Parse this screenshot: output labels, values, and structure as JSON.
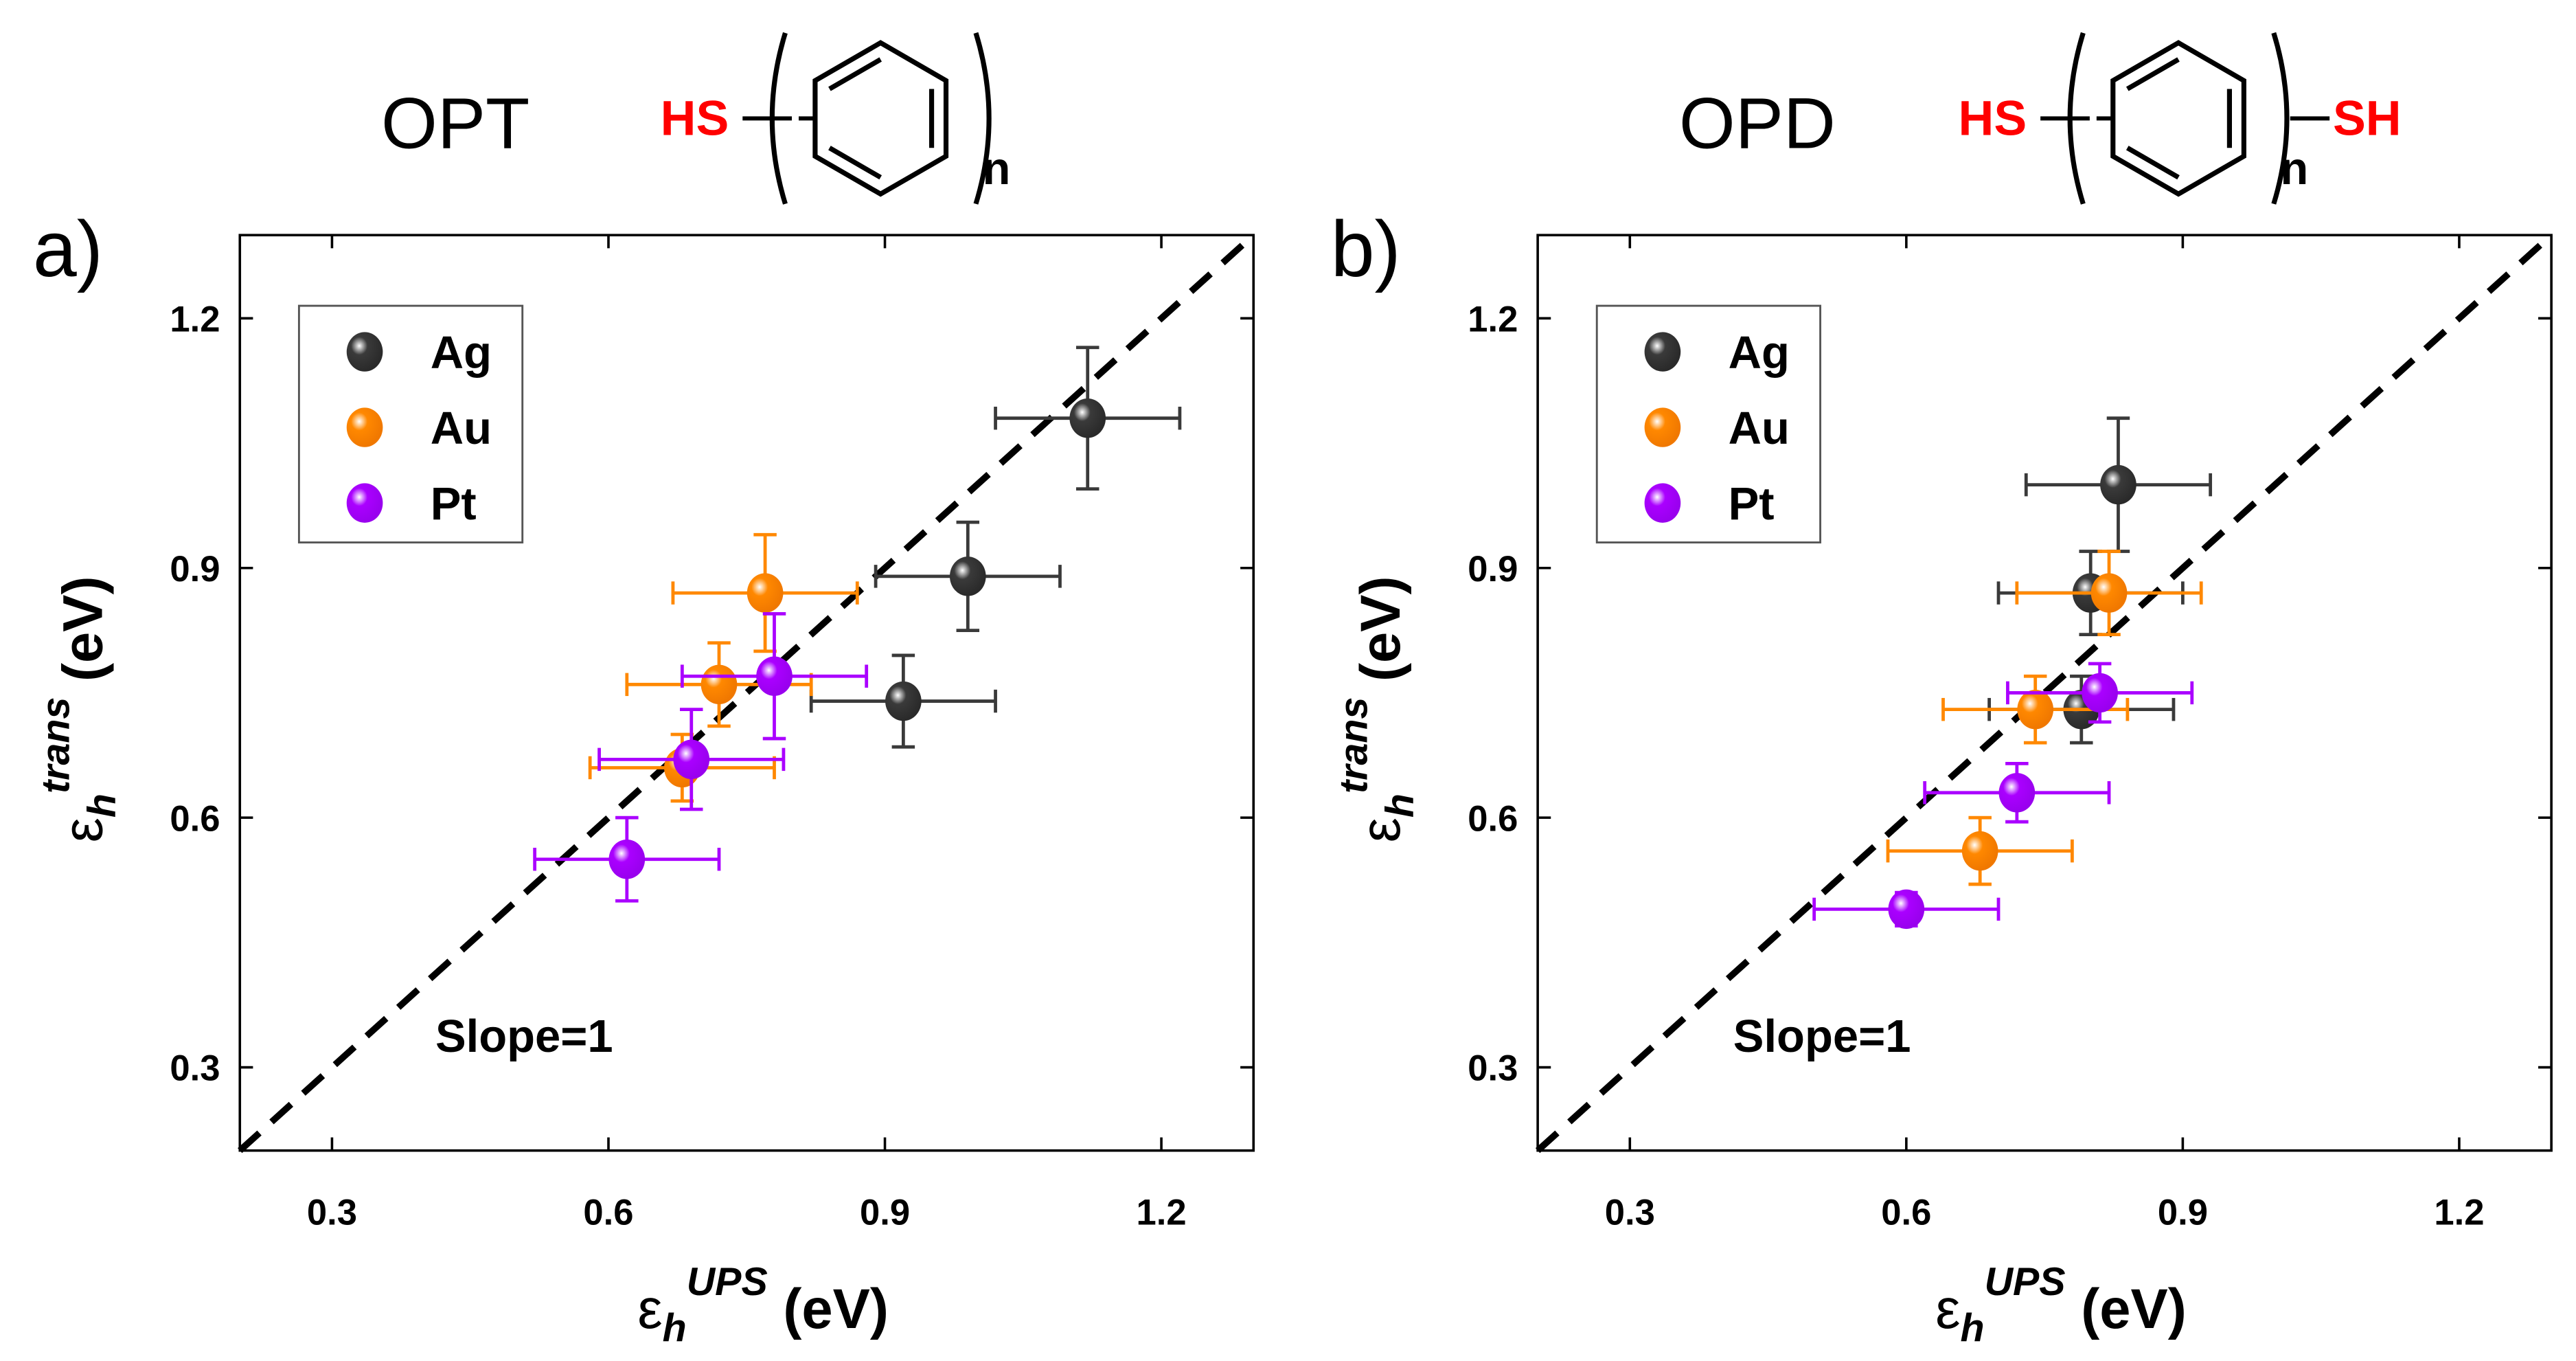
{
  "colors": {
    "Ag": "#3a3a3a",
    "Au": "#ff8800",
    "Pt": "#aa00ff",
    "thiol": "#ff0000",
    "diag": "#000000"
  },
  "chart_data": [
    {
      "type": "scatter",
      "panel_label": "a)",
      "title": "OPT",
      "structure": {
        "left_group": "HS",
        "subscript": "n",
        "right_group": ""
      },
      "xlabel": {
        "symbol": "ε",
        "sub": "h",
        "sup": "UPS",
        "unit": " (eV)"
      },
      "ylabel": {
        "symbol": "ε",
        "sub": "h",
        "sup": "trans",
        "unit": " (eV)"
      },
      "xlim": [
        0.2,
        1.3
      ],
      "ylim": [
        0.2,
        1.3
      ],
      "xticks": [
        "0.3",
        "0.6",
        "0.9",
        "1.2"
      ],
      "yticks": [
        "0.3",
        "0.6",
        "0.9",
        "1.2"
      ],
      "annotation": "Slope=1",
      "reference_line": {
        "slope": 1,
        "style": "dashed"
      },
      "legend": {
        "placement": "top-left",
        "entries": [
          "Ag",
          "Au",
          "Pt"
        ]
      },
      "series": [
        {
          "name": "Ag",
          "points": [
            {
              "x": 1.12,
              "y": 1.08,
              "xerr": 0.1,
              "yerr": 0.085
            },
            {
              "x": 0.99,
              "y": 0.89,
              "xerr": 0.1,
              "yerr": 0.065
            },
            {
              "x": 0.92,
              "y": 0.74,
              "xerr": 0.1,
              "yerr": 0.055
            }
          ]
        },
        {
          "name": "Au",
          "points": [
            {
              "x": 0.77,
              "y": 0.87,
              "xerr": 0.1,
              "yerr": 0.07
            },
            {
              "x": 0.72,
              "y": 0.76,
              "xerr": 0.1,
              "yerr": 0.05
            },
            {
              "x": 0.68,
              "y": 0.66,
              "xerr": 0.1,
              "yerr": 0.04
            }
          ]
        },
        {
          "name": "Pt",
          "points": [
            {
              "x": 0.78,
              "y": 0.77,
              "xerr": 0.1,
              "yerr": 0.075
            },
            {
              "x": 0.69,
              "y": 0.67,
              "xerr": 0.1,
              "yerr": 0.06
            },
            {
              "x": 0.62,
              "y": 0.55,
              "xerr": 0.1,
              "yerr": 0.05
            }
          ]
        }
      ]
    },
    {
      "type": "scatter",
      "panel_label": "b)",
      "title": "OPD",
      "structure": {
        "left_group": "HS",
        "subscript": "n",
        "right_group": "SH"
      },
      "xlabel": {
        "symbol": "ε",
        "sub": "h",
        "sup": "UPS",
        "unit": " (eV)"
      },
      "ylabel": {
        "symbol": "ε",
        "sub": "h",
        "sup": "trans",
        "unit": " (eV)"
      },
      "xlim": [
        0.2,
        1.3
      ],
      "ylim": [
        0.2,
        1.3
      ],
      "xticks": [
        "0.3",
        "0.6",
        "0.9",
        "1.2"
      ],
      "yticks": [
        "0.3",
        "0.6",
        "0.9",
        "1.2"
      ],
      "annotation": "Slope=1",
      "reference_line": {
        "slope": 1,
        "style": "dashed"
      },
      "legend": {
        "placement": "top-left",
        "entries": [
          "Ag",
          "Au",
          "Pt"
        ]
      },
      "series": [
        {
          "name": "Ag",
          "points": [
            {
              "x": 0.83,
              "y": 1.0,
              "xerr": 0.1,
              "yerr": 0.08
            },
            {
              "x": 0.8,
              "y": 0.87,
              "xerr": 0.1,
              "yerr": 0.05
            },
            {
              "x": 0.79,
              "y": 0.73,
              "xerr": 0.1,
              "yerr": 0.04
            }
          ]
        },
        {
          "name": "Au",
          "points": [
            {
              "x": 0.82,
              "y": 0.87,
              "xerr": 0.1,
              "yerr": 0.05
            },
            {
              "x": 0.74,
              "y": 0.73,
              "xerr": 0.1,
              "yerr": 0.04
            },
            {
              "x": 0.68,
              "y": 0.56,
              "xerr": 0.1,
              "yerr": 0.04
            }
          ]
        },
        {
          "name": "Pt",
          "points": [
            {
              "x": 0.81,
              "y": 0.75,
              "xerr": 0.1,
              "yerr": 0.035
            },
            {
              "x": 0.72,
              "y": 0.63,
              "xerr": 0.1,
              "yerr": 0.035
            },
            {
              "x": 0.6,
              "y": 0.49,
              "xerr": 0.1,
              "yerr": 0.02
            }
          ]
        }
      ]
    }
  ]
}
